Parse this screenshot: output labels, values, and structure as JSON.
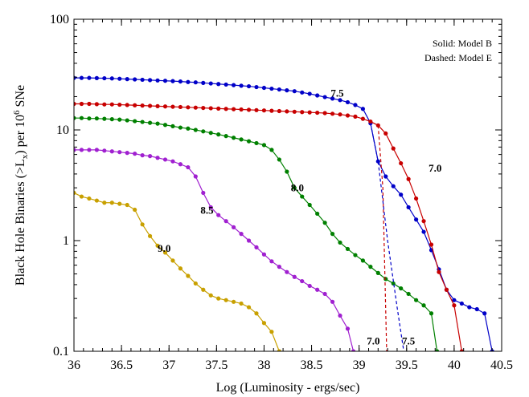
{
  "chart_data": {
    "type": "line",
    "xlabel": "Log (Luminosity - ergs/sec)",
    "ylabel": {
      "prefix": "Black Hole Binaries (>L",
      "sub": "x",
      "mid": ") per 10",
      "sup": "6",
      "suffix": " SNe"
    },
    "xlim": [
      36,
      40.5
    ],
    "ylim": [
      0.1,
      100
    ],
    "yscale": "log",
    "xticks": [
      36,
      36.5,
      37,
      37.5,
      38,
      38.5,
      39,
      39.5,
      40,
      40.5
    ],
    "xtick_labels": [
      "36",
      "36.5",
      "37",
      "37.5",
      "38",
      "38.5",
      "39",
      "39.5",
      "40",
      "40.5"
    ],
    "yticks": [
      0.1,
      1,
      10,
      100
    ],
    "ytick_labels": [
      "0.1",
      "1",
      "10",
      "100"
    ],
    "legend_lines": [
      "Solid: Model B",
      "Dashed: Model E"
    ],
    "legend_position": "top-right",
    "annotations": [
      {
        "text": "7.5",
        "x": 38.77,
        "y": 20
      },
      {
        "text": "7.0",
        "x": 39.8,
        "y": 4.2
      },
      {
        "text": "8.0",
        "x": 38.35,
        "y": 2.8
      },
      {
        "text": "8.5",
        "x": 37.4,
        "y": 1.75
      },
      {
        "text": "9.0",
        "x": 36.95,
        "y": 0.79
      },
      {
        "text": "7.0",
        "x": 39.15,
        "y": 0.115
      },
      {
        "text": "7.5",
        "x": 39.52,
        "y": 0.115
      }
    ],
    "series": [
      {
        "color": "#0000c8",
        "style": "solid",
        "points": [
          [
            36,
            29.5
          ],
          [
            36.08,
            29.5
          ],
          [
            36.16,
            29.5
          ],
          [
            36.24,
            29.4
          ],
          [
            36.32,
            29.3
          ],
          [
            36.4,
            29.2
          ],
          [
            36.48,
            29.0
          ],
          [
            36.56,
            28.8
          ],
          [
            36.64,
            28.6
          ],
          [
            36.72,
            28.4
          ],
          [
            36.8,
            28.2
          ],
          [
            36.88,
            28.0
          ],
          [
            36.96,
            27.8
          ],
          [
            37.04,
            27.6
          ],
          [
            37.12,
            27.4
          ],
          [
            37.2,
            27.1
          ],
          [
            37.28,
            26.9
          ],
          [
            37.36,
            26.6
          ],
          [
            37.44,
            26.3
          ],
          [
            37.52,
            26.0
          ],
          [
            37.6,
            25.7
          ],
          [
            37.68,
            25.4
          ],
          [
            37.76,
            25.1
          ],
          [
            37.84,
            24.8
          ],
          [
            37.92,
            24.4
          ],
          [
            38.0,
            24.0
          ],
          [
            38.08,
            23.6
          ],
          [
            38.16,
            23.2
          ],
          [
            38.24,
            22.8
          ],
          [
            38.32,
            22.4
          ],
          [
            38.4,
            21.8
          ],
          [
            38.48,
            21.2
          ],
          [
            38.56,
            20.5
          ],
          [
            38.64,
            19.8
          ],
          [
            38.72,
            19.2
          ],
          [
            38.8,
            18.6
          ],
          [
            38.88,
            17.8
          ],
          [
            38.96,
            16.8
          ],
          [
            39.04,
            15.5
          ],
          [
            39.12,
            11.5
          ],
          [
            39.2,
            5.2
          ],
          [
            39.28,
            3.8
          ],
          [
            39.36,
            3.1
          ],
          [
            39.44,
            2.6
          ],
          [
            39.52,
            2.0
          ],
          [
            39.6,
            1.55
          ],
          [
            39.68,
            1.2
          ],
          [
            39.76,
            0.82
          ],
          [
            39.84,
            0.55
          ],
          [
            39.92,
            0.36
          ],
          [
            40.0,
            0.29
          ],
          [
            40.08,
            0.27
          ],
          [
            40.16,
            0.25
          ],
          [
            40.24,
            0.24
          ],
          [
            40.32,
            0.22
          ],
          [
            40.4,
            0.1
          ]
        ]
      },
      {
        "color": "#c80000",
        "style": "solid",
        "points": [
          [
            36,
            17.2
          ],
          [
            36.08,
            17.2
          ],
          [
            36.16,
            17.2
          ],
          [
            36.24,
            17.1
          ],
          [
            36.32,
            17.0
          ],
          [
            36.4,
            17.0
          ],
          [
            36.48,
            16.9
          ],
          [
            36.56,
            16.8
          ],
          [
            36.64,
            16.7
          ],
          [
            36.72,
            16.6
          ],
          [
            36.8,
            16.5
          ],
          [
            36.88,
            16.4
          ],
          [
            36.96,
            16.3
          ],
          [
            37.04,
            16.2
          ],
          [
            37.12,
            16.1
          ],
          [
            37.2,
            16.0
          ],
          [
            37.28,
            15.9
          ],
          [
            37.36,
            15.8
          ],
          [
            37.44,
            15.7
          ],
          [
            37.52,
            15.6
          ],
          [
            37.6,
            15.5
          ],
          [
            37.68,
            15.4
          ],
          [
            37.76,
            15.3
          ],
          [
            37.84,
            15.2
          ],
          [
            37.92,
            15.1
          ],
          [
            38.0,
            15.0
          ],
          [
            38.08,
            14.9
          ],
          [
            38.16,
            14.8
          ],
          [
            38.24,
            14.7
          ],
          [
            38.32,
            14.6
          ],
          [
            38.4,
            14.5
          ],
          [
            38.48,
            14.4
          ],
          [
            38.56,
            14.3
          ],
          [
            38.64,
            14.2
          ],
          [
            38.72,
            14.0
          ],
          [
            38.8,
            13.8
          ],
          [
            38.88,
            13.5
          ],
          [
            38.96,
            13.2
          ],
          [
            39.04,
            12.6
          ],
          [
            39.12,
            11.9
          ],
          [
            39.2,
            11.0
          ],
          [
            39.28,
            9.3
          ],
          [
            39.36,
            6.8
          ],
          [
            39.44,
            5.0
          ],
          [
            39.52,
            3.6
          ],
          [
            39.6,
            2.4
          ],
          [
            39.68,
            1.5
          ],
          [
            39.76,
            0.92
          ],
          [
            39.84,
            0.52
          ],
          [
            39.92,
            0.36
          ],
          [
            40.0,
            0.26
          ],
          [
            40.08,
            0.1
          ]
        ]
      },
      {
        "color": "#008000",
        "style": "solid",
        "points": [
          [
            36,
            12.8
          ],
          [
            36.08,
            12.8
          ],
          [
            36.16,
            12.7
          ],
          [
            36.24,
            12.7
          ],
          [
            36.32,
            12.6
          ],
          [
            36.4,
            12.5
          ],
          [
            36.48,
            12.4
          ],
          [
            36.56,
            12.2
          ],
          [
            36.64,
            12.0
          ],
          [
            36.72,
            11.8
          ],
          [
            36.8,
            11.6
          ],
          [
            36.88,
            11.4
          ],
          [
            36.96,
            11.1
          ],
          [
            37.04,
            10.8
          ],
          [
            37.12,
            10.5
          ],
          [
            37.2,
            10.3
          ],
          [
            37.28,
            10.0
          ],
          [
            37.36,
            9.7
          ],
          [
            37.44,
            9.4
          ],
          [
            37.52,
            9.1
          ],
          [
            37.6,
            8.8
          ],
          [
            37.68,
            8.5
          ],
          [
            37.76,
            8.2
          ],
          [
            37.84,
            7.9
          ],
          [
            37.92,
            7.6
          ],
          [
            38.0,
            7.3
          ],
          [
            38.08,
            6.6
          ],
          [
            38.16,
            5.4
          ],
          [
            38.24,
            4.2
          ],
          [
            38.32,
            3.0
          ],
          [
            38.4,
            2.5
          ],
          [
            38.48,
            2.1
          ],
          [
            38.56,
            1.75
          ],
          [
            38.64,
            1.45
          ],
          [
            38.72,
            1.15
          ],
          [
            38.8,
            0.96
          ],
          [
            38.88,
            0.84
          ],
          [
            38.96,
            0.74
          ],
          [
            39.04,
            0.66
          ],
          [
            39.12,
            0.58
          ],
          [
            39.2,
            0.51
          ],
          [
            39.28,
            0.45
          ],
          [
            39.36,
            0.41
          ],
          [
            39.44,
            0.37
          ],
          [
            39.52,
            0.33
          ],
          [
            39.6,
            0.29
          ],
          [
            39.68,
            0.26
          ],
          [
            39.76,
            0.22
          ],
          [
            39.82,
            0.1
          ]
        ]
      },
      {
        "color": "#a020d0",
        "style": "solid",
        "points": [
          [
            36,
            6.6
          ],
          [
            36.08,
            6.6
          ],
          [
            36.16,
            6.6
          ],
          [
            36.24,
            6.6
          ],
          [
            36.32,
            6.5
          ],
          [
            36.4,
            6.4
          ],
          [
            36.48,
            6.3
          ],
          [
            36.56,
            6.2
          ],
          [
            36.64,
            6.1
          ],
          [
            36.72,
            5.9
          ],
          [
            36.8,
            5.8
          ],
          [
            36.88,
            5.6
          ],
          [
            36.96,
            5.4
          ],
          [
            37.04,
            5.2
          ],
          [
            37.12,
            4.9
          ],
          [
            37.2,
            4.6
          ],
          [
            37.28,
            3.8
          ],
          [
            37.36,
            2.7
          ],
          [
            37.44,
            2.0
          ],
          [
            37.52,
            1.7
          ],
          [
            37.6,
            1.5
          ],
          [
            37.68,
            1.32
          ],
          [
            37.76,
            1.15
          ],
          [
            37.84,
            1.0
          ],
          [
            37.92,
            0.87
          ],
          [
            38.0,
            0.75
          ],
          [
            38.08,
            0.65
          ],
          [
            38.16,
            0.58
          ],
          [
            38.24,
            0.52
          ],
          [
            38.32,
            0.47
          ],
          [
            38.4,
            0.43
          ],
          [
            38.48,
            0.39
          ],
          [
            38.56,
            0.36
          ],
          [
            38.64,
            0.33
          ],
          [
            38.72,
            0.28
          ],
          [
            38.8,
            0.21
          ],
          [
            38.88,
            0.16
          ],
          [
            38.94,
            0.1
          ]
        ]
      },
      {
        "color": "#c8a000",
        "style": "solid",
        "points": [
          [
            36,
            2.7
          ],
          [
            36.08,
            2.5
          ],
          [
            36.16,
            2.4
          ],
          [
            36.24,
            2.3
          ],
          [
            36.32,
            2.2
          ],
          [
            36.4,
            2.2
          ],
          [
            36.48,
            2.15
          ],
          [
            36.56,
            2.1
          ],
          [
            36.64,
            1.9
          ],
          [
            36.72,
            1.4
          ],
          [
            36.8,
            1.1
          ],
          [
            36.88,
            0.9
          ],
          [
            36.96,
            0.78
          ],
          [
            37.04,
            0.66
          ],
          [
            37.12,
            0.56
          ],
          [
            37.2,
            0.48
          ],
          [
            37.28,
            0.41
          ],
          [
            37.36,
            0.36
          ],
          [
            37.44,
            0.32
          ],
          [
            37.52,
            0.3
          ],
          [
            37.6,
            0.29
          ],
          [
            37.68,
            0.28
          ],
          [
            37.76,
            0.27
          ],
          [
            37.84,
            0.25
          ],
          [
            37.92,
            0.22
          ],
          [
            38.0,
            0.18
          ],
          [
            38.08,
            0.15
          ],
          [
            38.16,
            0.1
          ]
        ]
      },
      {
        "color": "#c80000",
        "style": "dashed",
        "points": [
          [
            39.2,
            11.0
          ],
          [
            39.25,
            3.0
          ],
          [
            39.29,
            0.1
          ]
        ]
      },
      {
        "color": "#0000c8",
        "style": "dashed",
        "points": [
          [
            39.12,
            11.5
          ],
          [
            39.2,
            5.2
          ],
          [
            39.3,
            1.0
          ],
          [
            39.4,
            0.25
          ],
          [
            39.47,
            0.1
          ]
        ]
      }
    ]
  }
}
